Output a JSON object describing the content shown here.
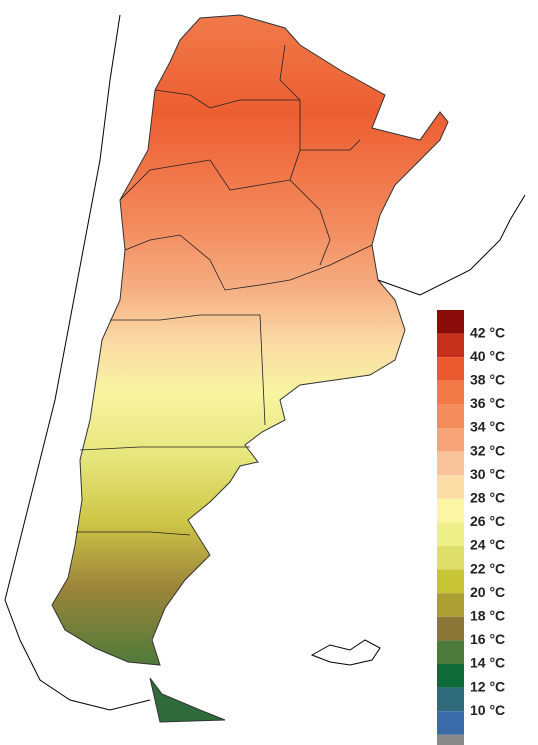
{
  "legend": {
    "labels": [
      "42 °C",
      "40 °C",
      "38 °C",
      "36 °C",
      "34 °C",
      "32 °C",
      "30 °C",
      "28 °C",
      "26 °C",
      "24 °C",
      "22 °C",
      "20 °C",
      "18 °C",
      "16 °C",
      "14 °C",
      "12 °C",
      "10 °C"
    ],
    "colors": [
      "#8b0a0a",
      "#c4301c",
      "#eb5a2e",
      "#f27a48",
      "#f58c5c",
      "#f6a478",
      "#f8c29a",
      "#fbdda6",
      "#fbf5a4",
      "#eef08a",
      "#dede6a",
      "#c8c438",
      "#ab9f34",
      "#8a7636",
      "#4c7a3a",
      "#0e6a38",
      "#2f6a7a",
      "#3a6aa8",
      "#8a8a8a"
    ]
  }
}
